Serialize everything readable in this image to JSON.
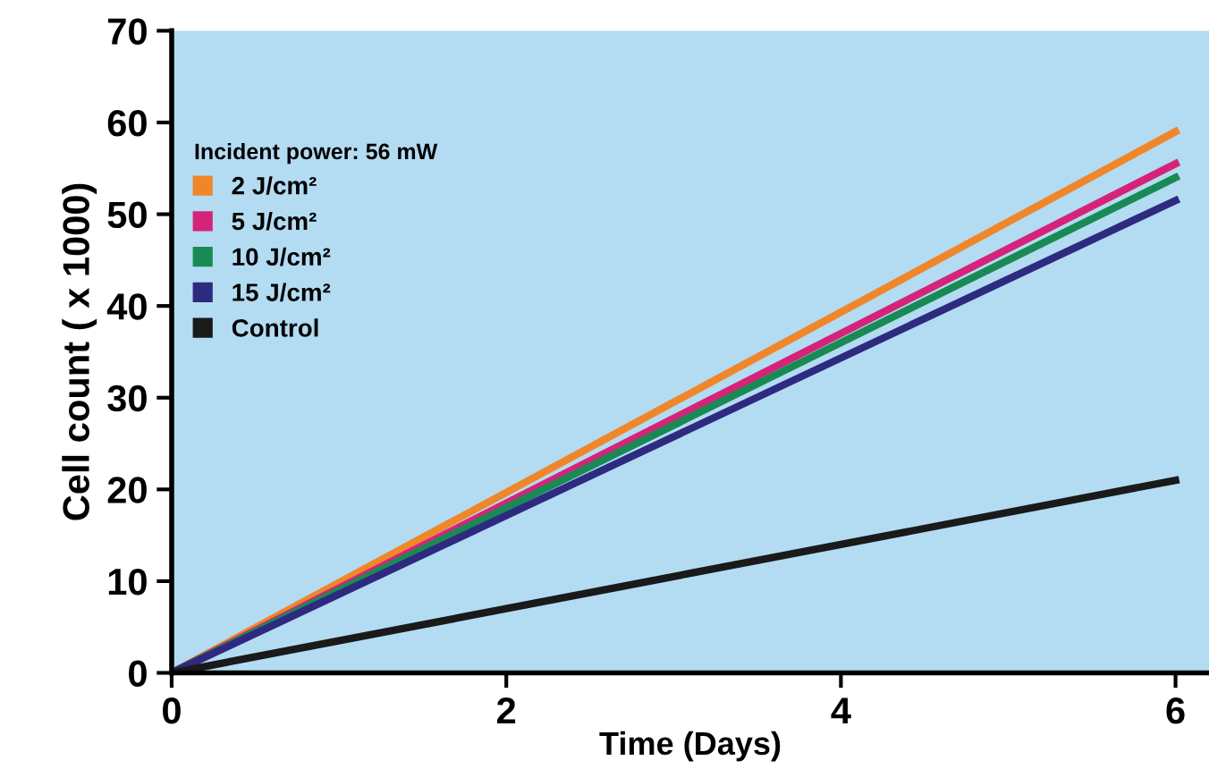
{
  "chart_data": {
    "type": "line",
    "xlabel": "Time (Days)",
    "ylabel": "Cell count ( x 1000)",
    "legend_title": "Incident power: 56 mW",
    "x": [
      0,
      6
    ],
    "series": [
      {
        "name": "2 J/cm²",
        "color": "#f0862a",
        "values": [
          0,
          59
        ]
      },
      {
        "name": "5 J/cm²",
        "color": "#d6237a",
        "values": [
          0,
          55.5
        ]
      },
      {
        "name": "10 J/cm²",
        "color": "#1a8a55",
        "values": [
          0,
          54
        ]
      },
      {
        "name": "15 J/cm²",
        "color": "#2e2a80",
        "values": [
          0,
          51.5
        ]
      },
      {
        "name": "Control",
        "color": "#1a1a1a",
        "values": [
          0,
          21
        ]
      }
    ],
    "xlim": [
      0,
      6.2
    ],
    "ylim": [
      0,
      70
    ],
    "xticks": [
      0,
      2,
      4,
      6
    ],
    "yticks": [
      0,
      10,
      20,
      30,
      40,
      50,
      60,
      70
    ],
    "grid": false,
    "legend": "top left",
    "marker": "none",
    "line_style": "solid"
  }
}
